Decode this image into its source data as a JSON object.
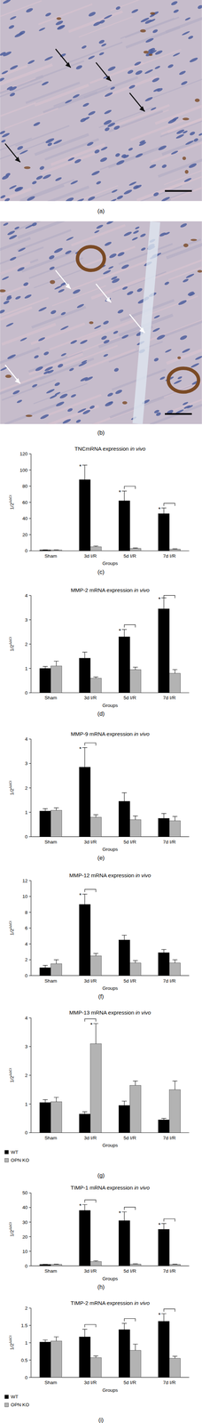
{
  "images": [
    {
      "panel": "(a)"
    },
    {
      "panel": "(b)"
    }
  ],
  "chart_data": [
    {
      "type": "bar",
      "panel": "(c)",
      "title": "TNCmRNA expression in vivo",
      "xlabel": "Groups",
      "ylabel": "1/2ΔΔCt",
      "categories": [
        "Sham",
        "3d I/R",
        "5d I/R",
        "7d I/R"
      ],
      "ylim": [
        0,
        120
      ],
      "yticks": [
        0,
        20,
        40,
        60,
        80,
        100,
        120
      ],
      "grid": false,
      "series": [
        {
          "name": "WT",
          "color": "#000000",
          "values": [
            1,
            88,
            62,
            46
          ],
          "errors": [
            0.3,
            18,
            12,
            7
          ]
        },
        {
          "name": "OPN KO",
          "color": "#b3b3b3",
          "values": [
            1,
            5,
            3,
            2
          ],
          "errors": [
            0.3,
            1,
            0.6,
            0.5
          ]
        }
      ],
      "annotations": [
        {
          "text": "*",
          "series": "WT",
          "category": "3d I/R"
        },
        {
          "text": "*",
          "series": "WT",
          "category": "5d I/R"
        },
        {
          "text": "*",
          "series": "WT",
          "category": "7d I/R"
        }
      ],
      "brackets": [
        {
          "category": "5d I/R"
        },
        {
          "category": "7d I/R"
        }
      ]
    },
    {
      "type": "bar",
      "panel": "(d)",
      "title": "MMP-2 mRNA expression in vivo",
      "xlabel": "Groups",
      "ylabel": "1/2ΔΔCt",
      "categories": [
        "Sham",
        "3d I/R",
        "5d I/R",
        "7d I/R"
      ],
      "ylim": [
        0,
        4
      ],
      "yticks": [
        0,
        1,
        2,
        3,
        4
      ],
      "grid": false,
      "series": [
        {
          "name": "WT",
          "color": "#000000",
          "values": [
            1.0,
            1.42,
            2.3,
            3.45
          ],
          "errors": [
            0.08,
            0.25,
            0.3,
            0.45
          ]
        },
        {
          "name": "OPN KO",
          "color": "#b3b3b3",
          "values": [
            1.1,
            0.6,
            0.95,
            0.8
          ],
          "errors": [
            0.2,
            0.05,
            0.1,
            0.15
          ]
        }
      ],
      "annotations": [
        {
          "text": "*",
          "series": "WT",
          "category": "5d I/R"
        },
        {
          "text": "*",
          "series": "WT",
          "category": "7d I/R"
        }
      ],
      "brackets": [
        {
          "category": "5d I/R"
        },
        {
          "category": "7d I/R"
        }
      ]
    },
    {
      "type": "bar",
      "panel": "(e)",
      "title": "MMP-9 mRNA expression in vivo",
      "xlabel": "Groups",
      "ylabel": "1/2ΔΔCt",
      "categories": [
        "Sham",
        "3d I/R",
        "5d I/R",
        "7d I/R"
      ],
      "ylim": [
        0,
        4
      ],
      "yticks": [
        0,
        1,
        2,
        3,
        4
      ],
      "grid": false,
      "series": [
        {
          "name": "WT",
          "color": "#000000",
          "values": [
            1.05,
            2.85,
            1.45,
            0.75
          ],
          "errors": [
            0.1,
            0.8,
            0.35,
            0.2
          ]
        },
        {
          "name": "OPN KO",
          "color": "#b3b3b3",
          "values": [
            1.08,
            0.8,
            0.7,
            0.65
          ],
          "errors": [
            0.1,
            0.1,
            0.15,
            0.18
          ]
        }
      ],
      "annotations": [
        {
          "text": "*",
          "series": "WT",
          "category": "3d I/R"
        }
      ],
      "brackets": [
        {
          "category": "3d I/R"
        }
      ]
    },
    {
      "type": "bar",
      "panel": "(f)",
      "title": "MMP-12 mRNA expression in vivo",
      "xlabel": "Groups",
      "ylabel": "1/2ΔΔCt",
      "categories": [
        "Sham",
        "3d I/R",
        "5d I/R",
        "7d I/R"
      ],
      "ylim": [
        0,
        12
      ],
      "yticks": [
        0,
        2,
        4,
        6,
        8,
        10,
        12
      ],
      "grid": false,
      "series": [
        {
          "name": "WT",
          "color": "#000000",
          "values": [
            1.0,
            9.0,
            4.5,
            2.9
          ],
          "errors": [
            0.3,
            1.3,
            0.6,
            0.4
          ]
        },
        {
          "name": "OPN KO",
          "color": "#b3b3b3",
          "values": [
            1.5,
            2.5,
            1.6,
            1.6
          ],
          "errors": [
            0.5,
            0.3,
            0.3,
            0.4
          ]
        }
      ],
      "annotations": [
        {
          "text": "*",
          "series": "WT",
          "category": "3d I/R"
        }
      ],
      "brackets": [
        {
          "category": "3d I/R"
        }
      ]
    },
    {
      "type": "bar",
      "panel": "(g)",
      "title": "MMP-13 mRNA expression in vivo",
      "xlabel": "Groups",
      "ylabel": "1/2ΔΔCt",
      "categories": [
        "Sham",
        "3d I/R",
        "5d I/R",
        "7d I/R"
      ],
      "ylim": [
        0,
        4
      ],
      "yticks": [
        0,
        1,
        2,
        3,
        4
      ],
      "grid": false,
      "legend": "bottom",
      "series": [
        {
          "name": "WT",
          "color": "#000000",
          "values": [
            1.05,
            0.65,
            0.95,
            0.45
          ],
          "errors": [
            0.1,
            0.08,
            0.15,
            0.05
          ]
        },
        {
          "name": "OPN KO",
          "color": "#b3b3b3",
          "values": [
            1.08,
            3.1,
            1.65,
            1.5
          ],
          "errors": [
            0.15,
            0.7,
            0.15,
            0.3
          ]
        }
      ],
      "annotations": [
        {
          "text": "*",
          "series": "OPN KO",
          "category": "3d I/R"
        }
      ],
      "brackets": [
        {
          "category": "3d I/R"
        }
      ]
    },
    {
      "type": "bar",
      "panel": "(h)",
      "title": "TIMP-1 mRNA expression in vivo",
      "xlabel": "Groups",
      "ylabel": "1/2ΔΔCt",
      "categories": [
        "Sham",
        "3d I/R",
        "5d I/R",
        "7d I/R"
      ],
      "ylim": [
        0,
        50
      ],
      "yticks": [
        0,
        10,
        20,
        30,
        40,
        50
      ],
      "grid": false,
      "series": [
        {
          "name": "WT",
          "color": "#000000",
          "values": [
            1,
            38,
            31,
            25
          ],
          "errors": [
            0.1,
            4,
            6,
            4
          ]
        },
        {
          "name": "OPN KO",
          "color": "#b3b3b3",
          "values": [
            1,
            3,
            1.2,
            1
          ],
          "errors": [
            0.2,
            0.5,
            0.2,
            0.2
          ]
        }
      ],
      "annotations": [
        {
          "text": "*",
          "series": "WT",
          "category": "3d I/R"
        },
        {
          "text": "*",
          "series": "WT",
          "category": "5d I/R"
        },
        {
          "text": "*",
          "series": "WT",
          "category": "7d I/R"
        }
      ],
      "brackets": [
        {
          "category": "3d I/R"
        },
        {
          "category": "5d I/R"
        },
        {
          "category": "7d I/R"
        }
      ]
    },
    {
      "type": "bar",
      "panel": "(i)",
      "title": "TIMP-2 mRNA expression in vivo",
      "xlabel": "Groups",
      "ylabel": "1/2ΔΔCt",
      "categories": [
        "Sham",
        "3d I/R",
        "5d I/R",
        "7d I/R"
      ],
      "ylim": [
        0,
        2
      ],
      "yticks": [
        0,
        0.5,
        1,
        1.5,
        2
      ],
      "grid": false,
      "legend": "bottom",
      "series": [
        {
          "name": "WT",
          "color": "#000000",
          "values": [
            1.02,
            1.17,
            1.38,
            1.62
          ],
          "errors": [
            0.06,
            0.22,
            0.18,
            0.22
          ]
        },
        {
          "name": "OPN KO",
          "color": "#b3b3b3",
          "values": [
            1.05,
            0.57,
            0.78,
            0.55
          ],
          "errors": [
            0.12,
            0.05,
            0.18,
            0.06
          ]
        }
      ],
      "annotations": [
        {
          "text": "*",
          "series": "WT",
          "category": "7d I/R"
        }
      ],
      "brackets": [
        {
          "category": "3d I/R"
        },
        {
          "category": "5d I/R"
        },
        {
          "category": "7d I/R"
        }
      ]
    }
  ]
}
